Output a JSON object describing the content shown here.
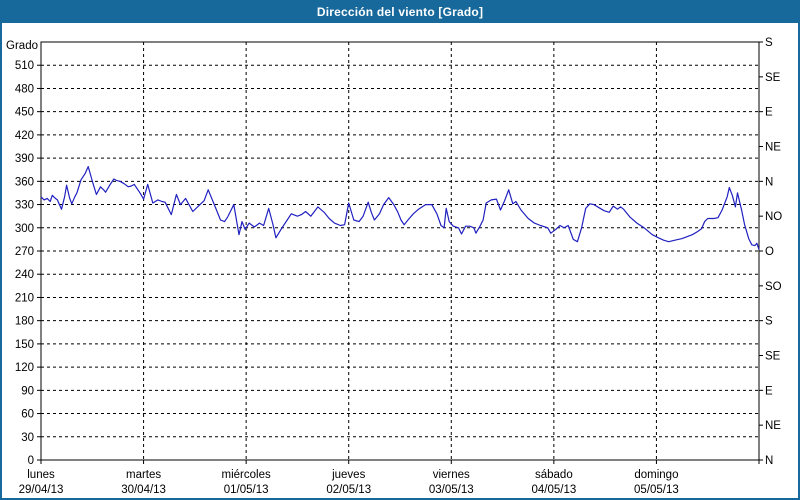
{
  "window": {
    "title": "Dirección del viento [Grado]"
  },
  "colors": {
    "titlebar_bg": "#17689b",
    "window_border": "#17689b",
    "plot_bg": "#ffffff",
    "frame": "#000000",
    "grid": "#000000",
    "text": "#000000",
    "line": "#2121c1"
  },
  "chart_data": {
    "type": "line",
    "title": "Dirección del viento [Grado]",
    "ylabel": "Grado",
    "ylim": [
      0,
      540
    ],
    "xlim_days": [
      0,
      7
    ],
    "grid": "dashed",
    "legend_position": "none",
    "y_ticks_left": [
      0,
      30,
      60,
      90,
      120,
      150,
      180,
      210,
      240,
      270,
      300,
      330,
      360,
      390,
      420,
      450,
      480,
      510
    ],
    "y_ticks_right": [
      {
        "value": 0,
        "label": "N"
      },
      {
        "value": 45,
        "label": "NE"
      },
      {
        "value": 90,
        "label": "E"
      },
      {
        "value": 135,
        "label": "SE"
      },
      {
        "value": 180,
        "label": "S"
      },
      {
        "value": 225,
        "label": "SO"
      },
      {
        "value": 270,
        "label": "O"
      },
      {
        "value": 315,
        "label": "NO"
      },
      {
        "value": 360,
        "label": "N"
      },
      {
        "value": 405,
        "label": "NE"
      },
      {
        "value": 450,
        "label": "E"
      },
      {
        "value": 495,
        "label": "SE"
      },
      {
        "value": 540,
        "label": "S"
      }
    ],
    "x_days": [
      {
        "name": "lunes",
        "date": "29/04/13",
        "day_index": 0
      },
      {
        "name": "martes",
        "date": "30/04/13",
        "day_index": 1
      },
      {
        "name": "miércoles",
        "date": "01/05/13",
        "day_index": 2
      },
      {
        "name": "jueves",
        "date": "02/05/13",
        "day_index": 3
      },
      {
        "name": "viernes",
        "date": "03/05/13",
        "day_index": 4
      },
      {
        "name": "sábado",
        "date": "04/05/13",
        "day_index": 5
      },
      {
        "name": "domingo",
        "date": "05/05/13",
        "day_index": 6
      }
    ],
    "series": [
      {
        "name": "Dirección del viento [Grado]",
        "color": "#2121c1",
        "points": [
          [
            0.0,
            340
          ],
          [
            0.03,
            336
          ],
          [
            0.06,
            338
          ],
          [
            0.09,
            334
          ],
          [
            0.11,
            342
          ],
          [
            0.14,
            338
          ],
          [
            0.16,
            336
          ],
          [
            0.2,
            324
          ],
          [
            0.23,
            340
          ],
          [
            0.25,
            355
          ],
          [
            0.28,
            338
          ],
          [
            0.3,
            331
          ],
          [
            0.33,
            340
          ],
          [
            0.35,
            345
          ],
          [
            0.39,
            362
          ],
          [
            0.43,
            370
          ],
          [
            0.46,
            379
          ],
          [
            0.49,
            365
          ],
          [
            0.51,
            356
          ],
          [
            0.54,
            343
          ],
          [
            0.58,
            353
          ],
          [
            0.61,
            349
          ],
          [
            0.63,
            346
          ],
          [
            0.67,
            355
          ],
          [
            0.71,
            363
          ],
          [
            0.74,
            361
          ],
          [
            0.77,
            360
          ],
          [
            0.81,
            357
          ],
          [
            0.85,
            353
          ],
          [
            0.88,
            354
          ],
          [
            0.91,
            356
          ],
          [
            0.94,
            350
          ],
          [
            0.97,
            344
          ],
          [
            1.0,
            337
          ],
          [
            1.04,
            356
          ],
          [
            1.09,
            332
          ],
          [
            1.14,
            336
          ],
          [
            1.18,
            334
          ],
          [
            1.21,
            333
          ],
          [
            1.27,
            317
          ],
          [
            1.32,
            343
          ],
          [
            1.36,
            330
          ],
          [
            1.41,
            338
          ],
          [
            1.48,
            321
          ],
          [
            1.55,
            330
          ],
          [
            1.59,
            335
          ],
          [
            1.63,
            349
          ],
          [
            1.69,
            330
          ],
          [
            1.75,
            310
          ],
          [
            1.79,
            308
          ],
          [
            1.82,
            314
          ],
          [
            1.88,
            330
          ],
          [
            1.93,
            291
          ],
          [
            1.96,
            308
          ],
          [
            1.99,
            298
          ],
          [
            2.03,
            306
          ],
          [
            2.08,
            301
          ],
          [
            2.13,
            306
          ],
          [
            2.17,
            303
          ],
          [
            2.22,
            325
          ],
          [
            2.26,
            305
          ],
          [
            2.29,
            287
          ],
          [
            2.35,
            300
          ],
          [
            2.4,
            310
          ],
          [
            2.44,
            318
          ],
          [
            2.5,
            315
          ],
          [
            2.54,
            317
          ],
          [
            2.58,
            321
          ],
          [
            2.63,
            315
          ],
          [
            2.7,
            327
          ],
          [
            2.76,
            320
          ],
          [
            2.81,
            312
          ],
          [
            2.86,
            306
          ],
          [
            2.92,
            303
          ],
          [
            2.96,
            304
          ],
          [
            3.0,
            332
          ],
          [
            3.05,
            310
          ],
          [
            3.1,
            308
          ],
          [
            3.14,
            315
          ],
          [
            3.19,
            333
          ],
          [
            3.22,
            320
          ],
          [
            3.25,
            310
          ],
          [
            3.3,
            318
          ],
          [
            3.34,
            330
          ],
          [
            3.39,
            339
          ],
          [
            3.44,
            330
          ],
          [
            3.48,
            320
          ],
          [
            3.51,
            310
          ],
          [
            3.54,
            304
          ],
          [
            3.59,
            312
          ],
          [
            3.63,
            318
          ],
          [
            3.68,
            324
          ],
          [
            3.75,
            330
          ],
          [
            3.81,
            330
          ],
          [
            3.86,
            318
          ],
          [
            3.9,
            303
          ],
          [
            3.93,
            300
          ],
          [
            3.95,
            325
          ],
          [
            3.98,
            308
          ],
          [
            4.02,
            302
          ],
          [
            4.07,
            300
          ],
          [
            4.1,
            292
          ],
          [
            4.14,
            302
          ],
          [
            4.18,
            302
          ],
          [
            4.22,
            300
          ],
          [
            4.24,
            293
          ],
          [
            4.28,
            302
          ],
          [
            4.31,
            310
          ],
          [
            4.34,
            332
          ],
          [
            4.39,
            336
          ],
          [
            4.44,
            337
          ],
          [
            4.48,
            323
          ],
          [
            4.52,
            335
          ],
          [
            4.56,
            349
          ],
          [
            4.6,
            331
          ],
          [
            4.63,
            334
          ],
          [
            4.68,
            323
          ],
          [
            4.75,
            312
          ],
          [
            4.81,
            306
          ],
          [
            4.87,
            303
          ],
          [
            4.94,
            300
          ],
          [
            4.97,
            293
          ],
          [
            5.02,
            298
          ],
          [
            5.06,
            303
          ],
          [
            5.1,
            300
          ],
          [
            5.14,
            303
          ],
          [
            5.19,
            285
          ],
          [
            5.23,
            282
          ],
          [
            5.27,
            300
          ],
          [
            5.31,
            325
          ],
          [
            5.35,
            331
          ],
          [
            5.39,
            330
          ],
          [
            5.44,
            326
          ],
          [
            5.49,
            322
          ],
          [
            5.54,
            320
          ],
          [
            5.58,
            328
          ],
          [
            5.62,
            324
          ],
          [
            5.65,
            327
          ],
          [
            5.68,
            324
          ],
          [
            5.74,
            314
          ],
          [
            5.81,
            306
          ],
          [
            5.88,
            300
          ],
          [
            5.96,
            291
          ],
          [
            6.02,
            287
          ],
          [
            6.07,
            284
          ],
          [
            6.12,
            282
          ],
          [
            6.18,
            284
          ],
          [
            6.25,
            286
          ],
          [
            6.35,
            291
          ],
          [
            6.4,
            295
          ],
          [
            6.44,
            299
          ],
          [
            6.47,
            308
          ],
          [
            6.5,
            312
          ],
          [
            6.56,
            312
          ],
          [
            6.6,
            313
          ],
          [
            6.64,
            323
          ],
          [
            6.69,
            340
          ],
          [
            6.71,
            352
          ],
          [
            6.74,
            342
          ],
          [
            6.77,
            327
          ],
          [
            6.79,
            345
          ],
          [
            6.83,
            323
          ],
          [
            6.86,
            304
          ],
          [
            6.9,
            286
          ],
          [
            6.93,
            278
          ],
          [
            6.96,
            277
          ],
          [
            6.98,
            280
          ],
          [
            7.0,
            272
          ]
        ]
      }
    ]
  }
}
